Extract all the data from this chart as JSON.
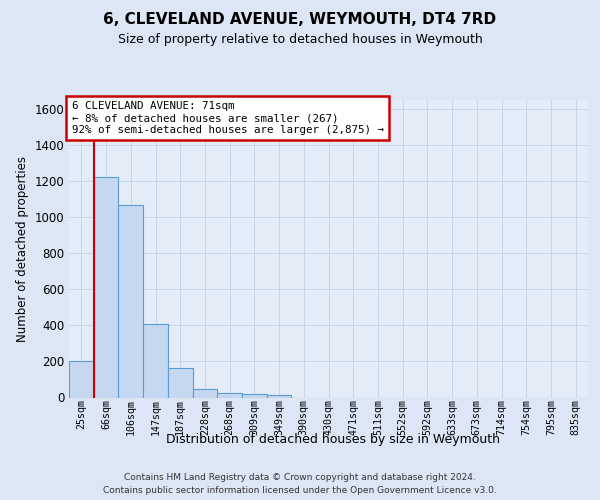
{
  "title": "6, CLEVELAND AVENUE, WEYMOUTH, DT4 7RD",
  "subtitle": "Size of property relative to detached houses in Weymouth",
  "xlabel": "Distribution of detached houses by size in Weymouth",
  "ylabel": "Number of detached properties",
  "bar_color": "#c5d8f0",
  "bar_edge_color": "#5b9bd5",
  "categories": [
    "25sqm",
    "66sqm",
    "106sqm",
    "147sqm",
    "187sqm",
    "228sqm",
    "268sqm",
    "309sqm",
    "349sqm",
    "390sqm",
    "430sqm",
    "471sqm",
    "511sqm",
    "552sqm",
    "592sqm",
    "633sqm",
    "673sqm",
    "714sqm",
    "754sqm",
    "795sqm",
    "835sqm"
  ],
  "values": [
    205,
    1225,
    1070,
    410,
    165,
    47,
    27,
    17,
    15,
    0,
    0,
    0,
    0,
    0,
    0,
    0,
    0,
    0,
    0,
    0,
    0
  ],
  "ylim": [
    0,
    1650
  ],
  "yticks": [
    0,
    200,
    400,
    600,
    800,
    1000,
    1200,
    1400,
    1600
  ],
  "property_line_bar_index": 1,
  "annotation_text": "6 CLEVELAND AVENUE: 71sqm\n← 8% of detached houses are smaller (267)\n92% of semi-detached houses are larger (2,875) →",
  "annotation_box_color": "#ffffff",
  "annotation_box_edge_color": "#cc0000",
  "footer_line1": "Contains HM Land Registry data © Crown copyright and database right 2024.",
  "footer_line2": "Contains public sector information licensed under the Open Government Licence v3.0.",
  "grid_color": "#c8d4e8",
  "background_color": "#dce6f4",
  "plot_bg_color": "#e4ecf7"
}
